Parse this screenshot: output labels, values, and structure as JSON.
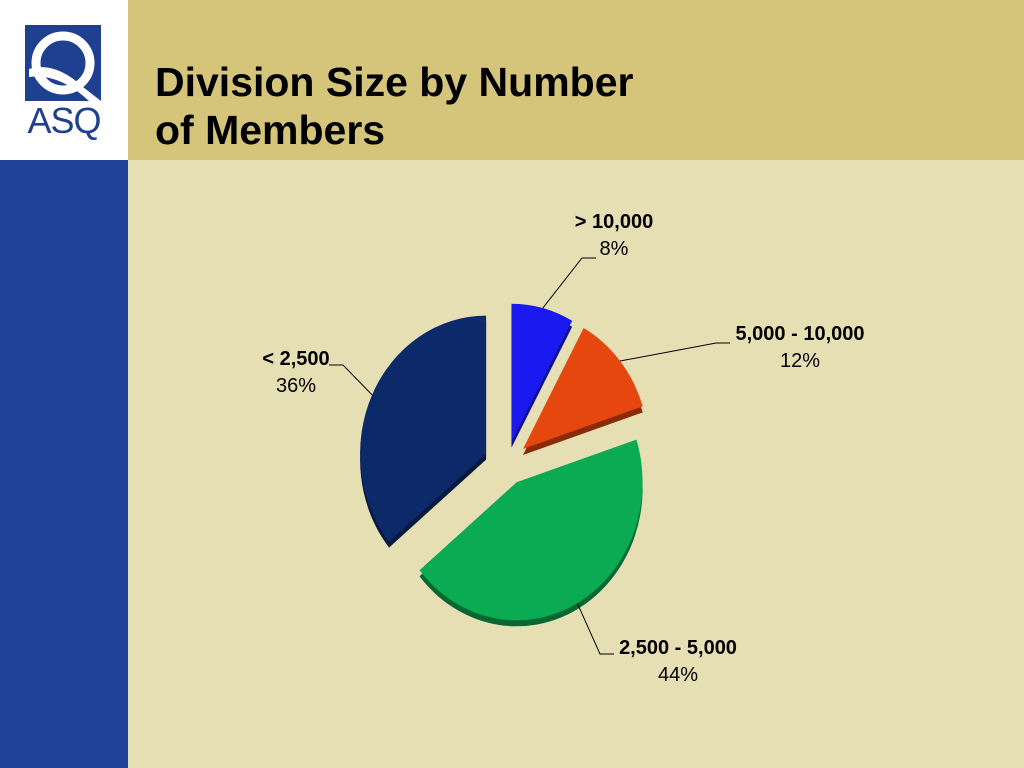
{
  "slide": {
    "title_line1": "Division Size by Number",
    "title_line2": "of Members",
    "logo_text": "ASQ"
  },
  "colors": {
    "header_band": "#d4c57b",
    "background": "#e6dfb4",
    "left_bar": "#21449b"
  },
  "chart_data": {
    "type": "pie",
    "style": "3d-exploded",
    "slices": [
      {
        "label": "> 10,000",
        "percent_label": "8%",
        "value": 8,
        "color": "#1a1af0"
      },
      {
        "label": "5,000 - 10,000",
        "percent_label": "12%",
        "value": 12,
        "color": "#e5470e"
      },
      {
        "label": "2,500 - 5,000",
        "percent_label": "44%",
        "value": 44,
        "color": "#0aab53"
      },
      {
        "label": "< 2,500",
        "percent_label": "36%",
        "value": 36,
        "color": "#0c2a69"
      }
    ]
  }
}
